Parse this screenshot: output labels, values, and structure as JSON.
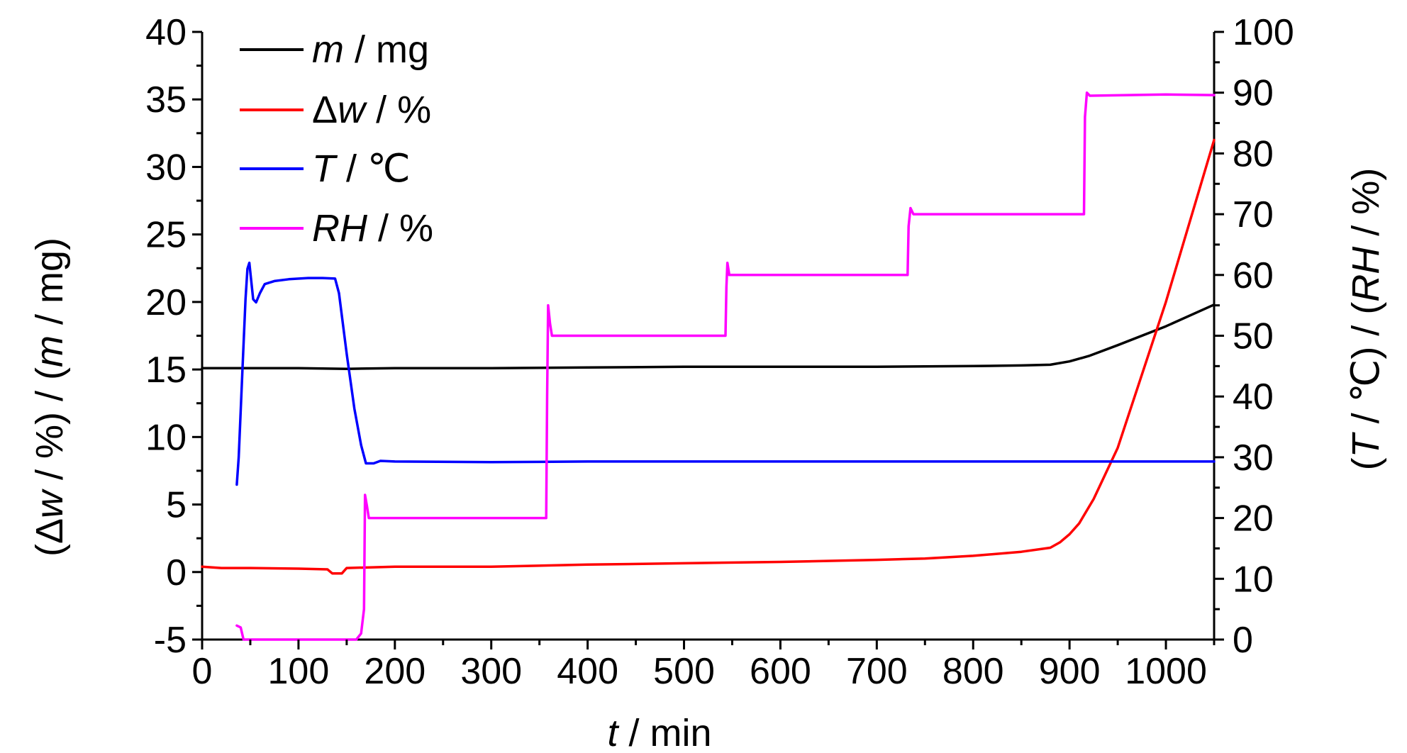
{
  "chart_data": {
    "type": "line",
    "x_axis": {
      "label_italic": "t",
      "label_rest": " / min",
      "min": 0,
      "max": 1050,
      "ticks": [
        0,
        100,
        200,
        300,
        400,
        500,
        600,
        700,
        800,
        900,
        1000
      ],
      "minor_step": 50
    },
    "y_left": {
      "label_parts": [
        "(Δ",
        "w",
        " / %) / (",
        "m",
        " / mg)"
      ],
      "min": -5,
      "max": 40,
      "ticks": [
        -5,
        0,
        5,
        10,
        15,
        20,
        25,
        30,
        35,
        40
      ],
      "minor_step": 2.5
    },
    "y_right": {
      "label_parts": [
        "(",
        "T",
        " / ℃) / (",
        "RH",
        " / %)"
      ],
      "min": 0,
      "max": 100,
      "ticks": [
        0,
        10,
        20,
        30,
        40,
        50,
        60,
        70,
        80,
        90,
        100
      ],
      "minor_step": 5
    },
    "legend_position": "top-left",
    "grid": false,
    "series": [
      {
        "name_italic": "m",
        "name_rest": " / mg",
        "color": "#000000",
        "axis": "left",
        "points": [
          [
            0,
            15.1
          ],
          [
            50,
            15.1
          ],
          [
            100,
            15.1
          ],
          [
            150,
            15.05
          ],
          [
            200,
            15.1
          ],
          [
            300,
            15.1
          ],
          [
            400,
            15.15
          ],
          [
            500,
            15.2
          ],
          [
            600,
            15.2
          ],
          [
            700,
            15.2
          ],
          [
            800,
            15.25
          ],
          [
            850,
            15.3
          ],
          [
            880,
            15.35
          ],
          [
            900,
            15.6
          ],
          [
            920,
            16.0
          ],
          [
            950,
            16.8
          ],
          [
            1000,
            18.2
          ],
          [
            1050,
            19.8
          ]
        ]
      },
      {
        "name_italic": "w",
        "name_prefix": "Δ",
        "name_rest": " / %",
        "color": "#ff0000",
        "axis": "left",
        "points": [
          [
            0,
            0.4
          ],
          [
            20,
            0.3
          ],
          [
            50,
            0.3
          ],
          [
            100,
            0.25
          ],
          [
            130,
            0.2
          ],
          [
            135,
            -0.1
          ],
          [
            145,
            -0.1
          ],
          [
            150,
            0.3
          ],
          [
            200,
            0.4
          ],
          [
            300,
            0.4
          ],
          [
            400,
            0.55
          ],
          [
            500,
            0.65
          ],
          [
            600,
            0.75
          ],
          [
            700,
            0.9
          ],
          [
            750,
            1.0
          ],
          [
            800,
            1.2
          ],
          [
            850,
            1.5
          ],
          [
            880,
            1.8
          ],
          [
            890,
            2.2
          ],
          [
            900,
            2.8
          ],
          [
            910,
            3.6
          ],
          [
            925,
            5.4
          ],
          [
            950,
            9.2
          ],
          [
            1000,
            20.0
          ],
          [
            1050,
            32.0
          ]
        ]
      },
      {
        "name_italic": "T",
        "name_rest": " / ℃",
        "color": "#0000ff",
        "axis": "right",
        "points": [
          [
            36,
            25.5
          ],
          [
            38,
            30
          ],
          [
            42,
            45
          ],
          [
            45,
            56
          ],
          [
            47,
            61
          ],
          [
            49,
            62
          ],
          [
            51,
            59
          ],
          [
            53,
            56
          ],
          [
            56,
            55.5
          ],
          [
            60,
            57
          ],
          [
            65,
            58.5
          ],
          [
            75,
            59
          ],
          [
            90,
            59.3
          ],
          [
            110,
            59.5
          ],
          [
            125,
            59.5
          ],
          [
            138,
            59.4
          ],
          [
            142,
            57
          ],
          [
            150,
            47
          ],
          [
            158,
            38
          ],
          [
            165,
            32
          ],
          [
            170,
            29
          ],
          [
            178,
            29
          ],
          [
            185,
            29.4
          ],
          [
            200,
            29.3
          ],
          [
            300,
            29.2
          ],
          [
            400,
            29.3
          ],
          [
            500,
            29.3
          ],
          [
            600,
            29.3
          ],
          [
            700,
            29.3
          ],
          [
            800,
            29.3
          ],
          [
            900,
            29.3
          ],
          [
            1000,
            29.3
          ],
          [
            1050,
            29.3
          ]
        ]
      },
      {
        "name_italic": "RH",
        "name_rest": " / %",
        "color": "#ff00ff",
        "axis": "right",
        "points": [
          [
            36,
            2.3
          ],
          [
            40,
            2
          ],
          [
            43,
            0
          ],
          [
            150,
            0
          ],
          [
            160,
            0
          ],
          [
            165,
            1
          ],
          [
            168,
            5
          ],
          [
            169,
            23.8
          ],
          [
            171,
            22
          ],
          [
            173,
            20
          ],
          [
            250,
            20
          ],
          [
            355,
            20
          ],
          [
            357,
            20
          ],
          [
            358,
            40
          ],
          [
            359,
            55
          ],
          [
            361,
            52
          ],
          [
            363,
            50
          ],
          [
            450,
            50
          ],
          [
            543,
            50
          ],
          [
            544,
            58
          ],
          [
            545,
            62
          ],
          [
            547,
            60
          ],
          [
            640,
            60
          ],
          [
            732,
            60
          ],
          [
            733,
            68
          ],
          [
            735,
            71
          ],
          [
            738,
            70
          ],
          [
            820,
            70
          ],
          [
            915,
            70
          ],
          [
            916,
            86
          ],
          [
            918,
            90
          ],
          [
            921,
            89.5
          ],
          [
            1000,
            89.7
          ],
          [
            1050,
            89.6
          ]
        ]
      }
    ]
  }
}
